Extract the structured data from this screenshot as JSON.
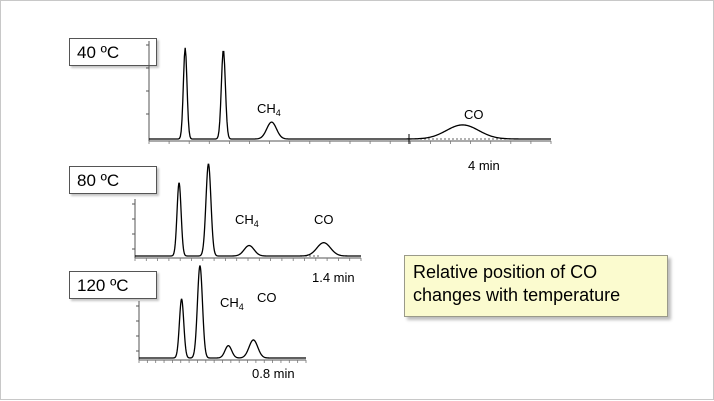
{
  "chart_data": [
    {
      "type": "line",
      "title": "40 ºC",
      "time_label": "4 min",
      "peaks": [
        {
          "label": "",
          "position": 0.09,
          "height": 0.97,
          "width": 0.0045
        },
        {
          "label": "",
          "position": 0.185,
          "height": 0.95,
          "width": 0.005
        },
        {
          "label": "CH4",
          "position": 0.305,
          "height": 0.18,
          "width": 0.012
        },
        {
          "label": "CO",
          "position": 0.78,
          "height": 0.15,
          "width": 0.04
        }
      ]
    },
    {
      "type": "line",
      "title": "80 ºC",
      "time_label": "1.4 min",
      "peaks": [
        {
          "label": "",
          "position": 0.195,
          "height": 0.77,
          "width": 0.009
        },
        {
          "label": "",
          "position": 0.325,
          "height": 0.97,
          "width": 0.011
        },
        {
          "label": "CH4",
          "position": 0.505,
          "height": 0.11,
          "width": 0.022
        },
        {
          "label": "CO",
          "position": 0.835,
          "height": 0.14,
          "width": 0.03
        }
      ]
    },
    {
      "type": "line",
      "title": "120 ºC",
      "time_label": "0.8 min",
      "peaks": [
        {
          "label": "",
          "position": 0.255,
          "height": 0.62,
          "width": 0.013
        },
        {
          "label": "",
          "position": 0.365,
          "height": 0.97,
          "width": 0.015
        },
        {
          "label": "CH4",
          "position": 0.535,
          "height": 0.13,
          "width": 0.02
        },
        {
          "label": "CO",
          "position": 0.685,
          "height": 0.19,
          "width": 0.026
        }
      ]
    }
  ],
  "panels": [
    {
      "tag": "40 ºC",
      "peak_label_ch4": "CH",
      "peak_label_ch4_sub": "4",
      "peak_label_co": "CO",
      "time_label": "4 min"
    },
    {
      "tag": "80 ºC",
      "peak_label_ch4": "CH",
      "peak_label_ch4_sub": "4",
      "peak_label_co": "CO",
      "time_label": "1.4 min"
    },
    {
      "tag": "120 ºC",
      "peak_label_ch4": "CH",
      "peak_label_ch4_sub": "4",
      "peak_label_co": "CO",
      "time_label": "0.8 min"
    }
  ],
  "callout": {
    "line1": "Relative position of CO",
    "line2": "changes with temperature"
  },
  "colors": {
    "trace": "#000000",
    "callout_fill": "#fbfbcf",
    "tag_border": "#555555"
  }
}
